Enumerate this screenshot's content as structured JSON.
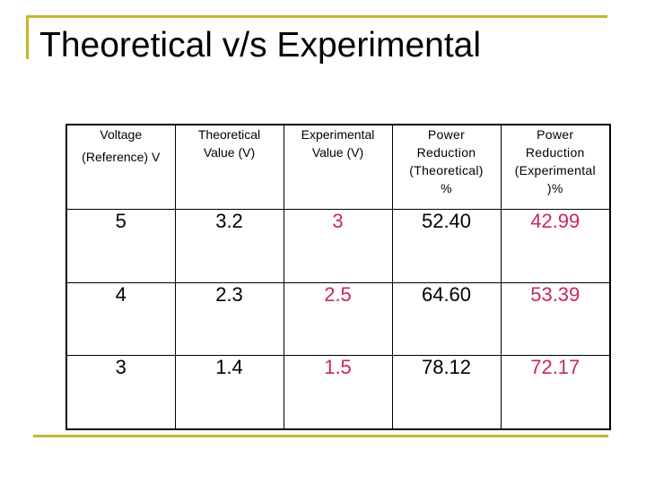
{
  "slide": {
    "title": "Theoretical v/s Experimental"
  },
  "table": {
    "headers": [
      [
        "Voltage",
        "(Reference) V"
      ],
      [
        "Theoretical",
        "Value (V)"
      ],
      [
        "Experimental",
        "Value (V)"
      ],
      [
        "Power",
        "Reduction",
        "(Theoretical)",
        "%"
      ],
      [
        "Power",
        "Reduction",
        "(Experimental",
        ")%"
      ]
    ],
    "rows": [
      [
        "5",
        "3.2",
        "3",
        "52.40",
        "42.99"
      ],
      [
        "4",
        "2.3",
        "2.5",
        "64.60",
        "53.39"
      ],
      [
        "3",
        "1.4",
        "1.5",
        "78.12",
        "72.17"
      ]
    ]
  },
  "colors": {
    "accent_rule": "#c8b432",
    "theoretical_text": "#000000",
    "experimental_text": "#c8285a"
  }
}
